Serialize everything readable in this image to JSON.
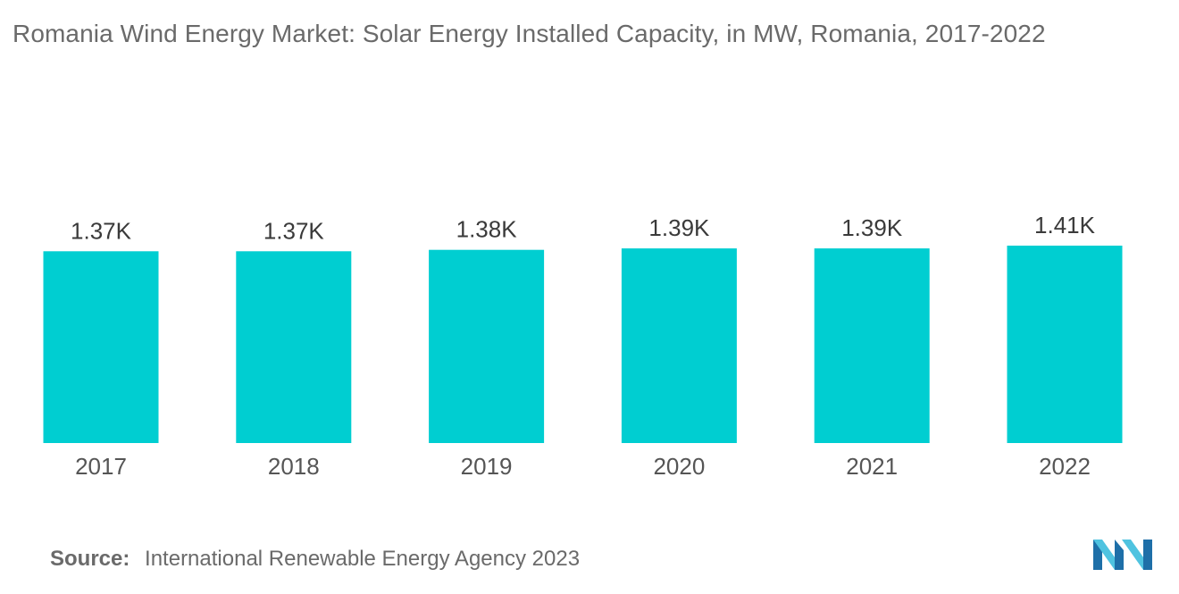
{
  "title": "Romania Wind Energy Market: Solar Energy Installed Capacity, in MW, Romania, 2017-2022",
  "source": {
    "label": "Source:",
    "text": "International Renewable Energy Agency 2023"
  },
  "colors": {
    "bar": "#00CED1",
    "logo_light": "#4FC3E0",
    "logo_dark": "#1E6FA8"
  },
  "logo_icon": "mordor-intelligence-logo-icon",
  "chart_data": {
    "type": "bar",
    "title": "Romania Wind Energy Market: Solar Energy Installed Capacity, in MW, Romania, 2017-2022",
    "xlabel": "",
    "ylabel": "",
    "categories": [
      "2017",
      "2018",
      "2019",
      "2020",
      "2021",
      "2022"
    ],
    "values": [
      1370,
      1370,
      1380,
      1390,
      1390,
      1410
    ],
    "value_labels": [
      "1.37K",
      "1.37K",
      "1.38K",
      "1.39K",
      "1.39K",
      "1.41K"
    ],
    "ylim": [
      0,
      1410
    ],
    "grid": false,
    "legend": "none"
  }
}
